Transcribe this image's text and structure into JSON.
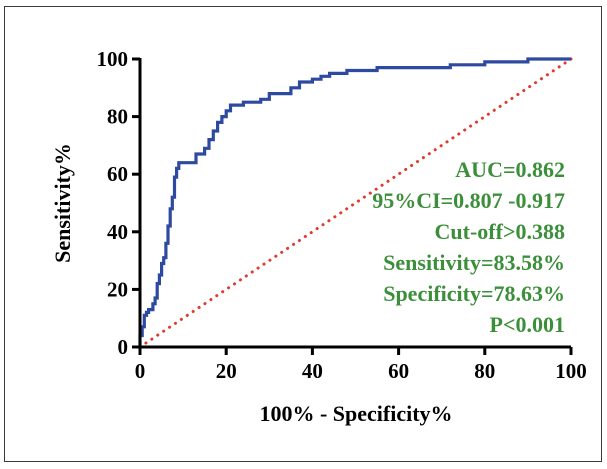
{
  "chart_data": {
    "type": "line",
    "xlabel": "100% - Specificity%",
    "ylabel": "Sensitivity%",
    "xlim": [
      0,
      100
    ],
    "ylim": [
      0,
      100
    ],
    "x_ticks": [
      "0",
      "20",
      "40",
      "60",
      "80",
      "100"
    ],
    "y_ticks": [
      "0",
      "20",
      "40",
      "60",
      "80",
      "100"
    ],
    "series": [
      {
        "color": "#2e4aa0",
        "points": [
          [
            0,
            0
          ],
          [
            0,
            4
          ],
          [
            0.5,
            4
          ],
          [
            0.5,
            7
          ],
          [
            1,
            7
          ],
          [
            1,
            11
          ],
          [
            1.5,
            11
          ],
          [
            1.5,
            12
          ],
          [
            2,
            12
          ],
          [
            2,
            13
          ],
          [
            3,
            13
          ],
          [
            3,
            15
          ],
          [
            3.5,
            15
          ],
          [
            3.5,
            17
          ],
          [
            4,
            17
          ],
          [
            4,
            22
          ],
          [
            4.5,
            22
          ],
          [
            4.5,
            25
          ],
          [
            5,
            25
          ],
          [
            5,
            29
          ],
          [
            5.5,
            29
          ],
          [
            5.5,
            31
          ],
          [
            6,
            31
          ],
          [
            6,
            36
          ],
          [
            6.5,
            36
          ],
          [
            6.5,
            42
          ],
          [
            7,
            42
          ],
          [
            7,
            48
          ],
          [
            7.5,
            48
          ],
          [
            7.5,
            52
          ],
          [
            8,
            52
          ],
          [
            8,
            59
          ],
          [
            8.5,
            59
          ],
          [
            8.5,
            62
          ],
          [
            9,
            62
          ],
          [
            9,
            64
          ],
          [
            13,
            64
          ],
          [
            13,
            67
          ],
          [
            15,
            67
          ],
          [
            15,
            69
          ],
          [
            16,
            69
          ],
          [
            16,
            72
          ],
          [
            17,
            72
          ],
          [
            17,
            75
          ],
          [
            18,
            75
          ],
          [
            18,
            78
          ],
          [
            19,
            78
          ],
          [
            19,
            80
          ],
          [
            20,
            80
          ],
          [
            20,
            82
          ],
          [
            21,
            82
          ],
          [
            21,
            84
          ],
          [
            24,
            84
          ],
          [
            24,
            85
          ],
          [
            28,
            85
          ],
          [
            28,
            86
          ],
          [
            30,
            86
          ],
          [
            30,
            88
          ],
          [
            35,
            88
          ],
          [
            35,
            90
          ],
          [
            37,
            90
          ],
          [
            37,
            92
          ],
          [
            40,
            92
          ],
          [
            40,
            93
          ],
          [
            42,
            93
          ],
          [
            42,
            94
          ],
          [
            44,
            94
          ],
          [
            44,
            95
          ],
          [
            48,
            95
          ],
          [
            48,
            96
          ],
          [
            55,
            96
          ],
          [
            55,
            97
          ],
          [
            72,
            97
          ],
          [
            72,
            98
          ],
          [
            80,
            98
          ],
          [
            80,
            99
          ],
          [
            90,
            99
          ],
          [
            90,
            100
          ],
          [
            100,
            100
          ]
        ]
      },
      {
        "color": "#e03a2e",
        "style": "dotted",
        "points": [
          [
            0,
            0
          ],
          [
            100,
            100
          ]
        ]
      }
    ],
    "annotation_color": "#3b8f3a",
    "annotations": [
      "AUC=0.862",
      "95%CI=0.807 -0.917",
      "Cut-off>0.388",
      "Sensitivity=83.58%",
      "Specificity=78.63%",
      "P<0.001"
    ]
  }
}
